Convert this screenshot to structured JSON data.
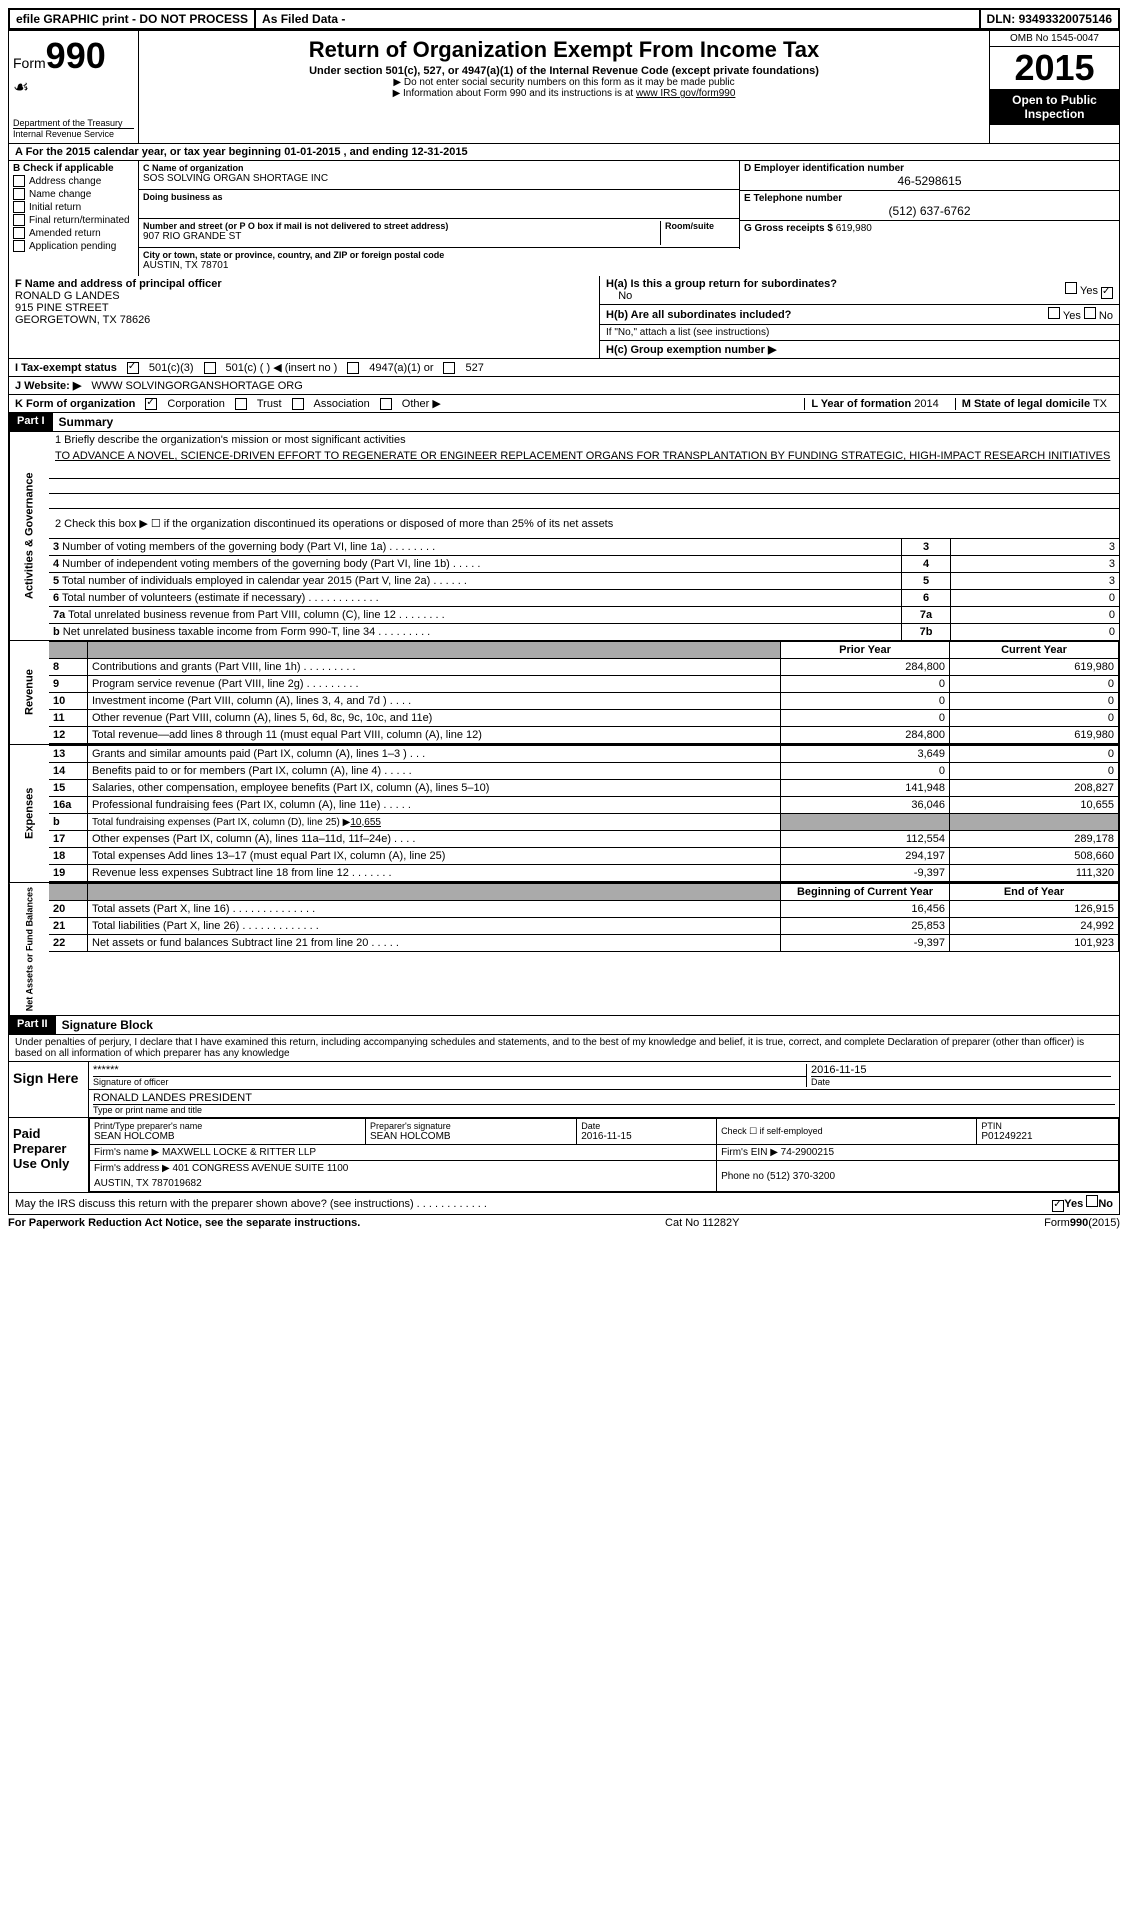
{
  "header": {
    "efile": "efile GRAPHIC print - DO NOT PROCESS",
    "asfiled": "As Filed Data -",
    "dln_label": "DLN:",
    "dln": "93493320075146"
  },
  "formbox": {
    "form": "Form",
    "num": "990",
    "dept": "Department of the Treasury",
    "irs": "Internal Revenue Service"
  },
  "title": {
    "main": "Return of Organization Exempt From Income Tax",
    "sub": "Under section 501(c), 527, or 4947(a)(1) of the Internal Revenue Code (except private foundations)",
    "note1": "▶ Do not enter social security numbers on this form as it may be made public",
    "note2": "▶ Information about Form 990 and its instructions is at",
    "link": "www IRS gov/form990"
  },
  "righthead": {
    "omb": "OMB No 1545-0047",
    "year": "2015",
    "open": "Open to Public Inspection"
  },
  "rowA": "A  For the 2015 calendar year, or tax year beginning 01-01-2015    , and ending 12-31-2015",
  "colB": {
    "title": "B  Check if applicable",
    "items": [
      "Address change",
      "Name change",
      "Initial return",
      "Final return/terminated",
      "Amended return",
      "Application pending"
    ]
  },
  "colC": {
    "name_lbl": "C Name of organization",
    "name": "SOS SOLVING ORGAN SHORTAGE INC",
    "dba_lbl": "Doing business as",
    "dba": "",
    "street_lbl": "Number and street (or P O box if mail is not delivered to street address)",
    "room_lbl": "Room/suite",
    "street": "907 RIO GRANDE ST",
    "city_lbl": "City or town, state or province, country, and ZIP or foreign postal code",
    "city": "AUSTIN, TX 78701"
  },
  "colD": {
    "ein_lbl": "D Employer identification number",
    "ein": "46-5298615",
    "tel_lbl": "E Telephone number",
    "tel": "(512) 637-6762",
    "gross_lbl": "G Gross receipts $",
    "gross": "619,980"
  },
  "blockF": {
    "lbl": "F  Name and address of principal officer",
    "name": "RONALD G LANDES",
    "addr1": "915 PINE STREET",
    "addr2": "GEORGETOWN, TX 78626"
  },
  "blockH": {
    "ha_lbl": "H(a)  Is this a group return for subordinates?",
    "ha_no": "No",
    "hb_lbl": "H(b)  Are all subordinates included?",
    "hb_note": "If \"No,\" attach a list  (see instructions)",
    "hc_lbl": "H(c)  Group exemption number ▶"
  },
  "rowI": {
    "lbl": "I  Tax-exempt status",
    "opts": [
      "501(c)(3)",
      "501(c) (  ) ◀ (insert no )",
      "4947(a)(1) or",
      "527"
    ]
  },
  "rowJ": {
    "lbl": "J  Website: ▶",
    "val": "WWW SOLVINGORGANSHORTAGE ORG"
  },
  "rowK": {
    "lbl": "K Form of organization",
    "opts": [
      "Corporation",
      "Trust",
      "Association",
      "Other ▶"
    ],
    "L_lbl": "L Year of formation",
    "L_val": "2014",
    "M_lbl": "M State of legal domicile",
    "M_val": "TX"
  },
  "partI": {
    "title": "Part I",
    "label": "Summary",
    "q1": "1 Briefly describe the organization's mission or most significant activities",
    "mission": "TO ADVANCE A NOVEL, SCIENCE-DRIVEN EFFORT TO REGENERATE OR ENGINEER REPLACEMENT ORGANS FOR TRANSPLANTATION BY FUNDING STRATEGIC, HIGH-IMPACT RESEARCH INITIATIVES",
    "q2": "2  Check this box ▶ ☐ if the organization discontinued its operations or disposed of more than 25% of its net assets"
  },
  "gov": {
    "side": "Activities & Governance",
    "lines": [
      {
        "n": "3",
        "t": "Number of voting members of the governing body (Part VI, line 1a)  .   .   .   .   .   .   .   .",
        "k": "3",
        "v": "3"
      },
      {
        "n": "4",
        "t": "Number of independent voting members of the governing body (Part VI, line 1b)  .   .   .   .   .",
        "k": "4",
        "v": "3"
      },
      {
        "n": "5",
        "t": "Total number of individuals employed in calendar year 2015 (Part V, line 2a)  .   .   .   .   .   .",
        "k": "5",
        "v": "3"
      },
      {
        "n": "6",
        "t": "Total number of volunteers (estimate if necessary)  .   .   .   .   .   .   .   .   .   .   .   .",
        "k": "6",
        "v": "0"
      },
      {
        "n": "7a",
        "t": "Total unrelated business revenue from Part VIII, column (C), line 12  .   .   .   .   .   .   .   .",
        "k": "7a",
        "v": "0"
      },
      {
        "n": "b",
        "t": "Net unrelated business taxable income from Form 990-T, line 34  .   .   .   .   .   .   .   .   .",
        "k": "7b",
        "v": "0"
      }
    ]
  },
  "rev": {
    "side": "Revenue",
    "hdr_prior": "Prior Year",
    "hdr_curr": "Current Year",
    "lines": [
      {
        "n": "8",
        "t": "Contributions and grants (Part VIII, line 1h)  .   .   .   .   .   .   .   .   .",
        "p": "284,800",
        "c": "619,980"
      },
      {
        "n": "9",
        "t": "Program service revenue (Part VIII, line 2g)  .   .   .   .   .   .   .   .   .",
        "p": "0",
        "c": "0"
      },
      {
        "n": "10",
        "t": "Investment income (Part VIII, column (A), lines 3, 4, and 7d )  .   .   .   .",
        "p": "0",
        "c": "0"
      },
      {
        "n": "11",
        "t": "Other revenue (Part VIII, column (A), lines 5, 6d, 8c, 9c, 10c, and 11e)",
        "p": "0",
        "c": "0"
      },
      {
        "n": "12",
        "t": "Total revenue—add lines 8 through 11 (must equal Part VIII, column (A), line 12)",
        "p": "284,800",
        "c": "619,980"
      }
    ]
  },
  "exp": {
    "side": "Expenses",
    "lines": [
      {
        "n": "13",
        "t": "Grants and similar amounts paid (Part IX, column (A), lines 1–3 )  .   .   .",
        "p": "3,649",
        "c": "0"
      },
      {
        "n": "14",
        "t": "Benefits paid to or for members (Part IX, column (A), line 4)  .   .   .   .   .",
        "p": "0",
        "c": "0"
      },
      {
        "n": "15",
        "t": "Salaries, other compensation, employee benefits (Part IX, column (A), lines 5–10)",
        "p": "141,948",
        "c": "208,827"
      },
      {
        "n": "16a",
        "t": "Professional fundraising fees (Part IX, column (A), line 11e)  .   .   .   .   .",
        "p": "36,046",
        "c": "10,655"
      },
      {
        "n": "b",
        "t": "Total fundraising expenses (Part IX, column (D), line 25) ▶",
        "fund": "10,655",
        "p": null,
        "c": null
      },
      {
        "n": "17",
        "t": "Other expenses (Part IX, column (A), lines 11a–11d, 11f–24e)  .   .   .   .",
        "p": "112,554",
        "c": "289,178"
      },
      {
        "n": "18",
        "t": "Total expenses  Add lines 13–17 (must equal Part IX, column (A), line 25)",
        "p": "294,197",
        "c": "508,660"
      },
      {
        "n": "19",
        "t": "Revenue less expenses  Subtract line 18 from line 12  .   .   .   .   .   .   .",
        "p": "-9,397",
        "c": "111,320"
      }
    ]
  },
  "net": {
    "side": "Net Assets or Fund Balances",
    "hdr_beg": "Beginning of Current Year",
    "hdr_end": "End of Year",
    "lines": [
      {
        "n": "20",
        "t": "Total assets (Part X, line 16)  .   .   .   .   .   .   .   .   .   .   .   .   .   .",
        "p": "16,456",
        "c": "126,915"
      },
      {
        "n": "21",
        "t": "Total liabilities (Part X, line 26)  .   .   .   .   .   .   .   .   .   .   .   .   .",
        "p": "25,853",
        "c": "24,992"
      },
      {
        "n": "22",
        "t": "Net assets or fund balances  Subtract line 21 from line 20  .   .   .   .   .",
        "p": "-9,397",
        "c": "101,923"
      }
    ]
  },
  "partII": {
    "title": "Part II",
    "label": "Signature Block",
    "decl": "Under penalties of perjury, I declare that I have examined this return, including accompanying schedules and statements, and to the best of my knowledge and belief, it is true, correct, and complete  Declaration of preparer (other than officer) is based on all information of which preparer has any knowledge"
  },
  "sign": {
    "here": "Sign Here",
    "stars": "******",
    "sig_lbl": "Signature of officer",
    "date": "2016-11-15",
    "date_lbl": "Date",
    "name": "RONALD LANDES PRESIDENT",
    "name_lbl": "Type or print name and title"
  },
  "prep": {
    "title": "Paid Preparer Use Only",
    "print_lbl": "Print/Type preparer's name",
    "print_val": "SEAN HOLCOMB",
    "sig_lbl": "Preparer's signature",
    "sig_val": "SEAN HOLCOMB",
    "date_lbl": "Date",
    "date_val": "2016-11-15",
    "self_lbl": "Check ☐ if self-employed",
    "ptin_lbl": "PTIN",
    "ptin_val": "P01249221",
    "firm_lbl": "Firm's name    ▶",
    "firm_val": "MAXWELL LOCKE & RITTER LLP",
    "ein_lbl": "Firm's EIN ▶",
    "ein_val": "74-2900215",
    "addr_lbl": "Firm's address ▶",
    "addr_val": "401 CONGRESS AVENUE SUITE 1100",
    "addr_val2": "AUSTIN, TX 787019682",
    "phone_lbl": "Phone no",
    "phone_val": "(512) 370-3200"
  },
  "footer": {
    "discuss": "May the IRS discuss this return with the preparer shown above? (see instructions)  .   .   .   .   .   .   .   .   .   .   .   .",
    "yes": "Yes",
    "no": "No",
    "paperwork": "For Paperwork Reduction Act Notice, see the separate instructions.",
    "cat": "Cat No 11282Y",
    "form": "Form 990 (2015)"
  }
}
